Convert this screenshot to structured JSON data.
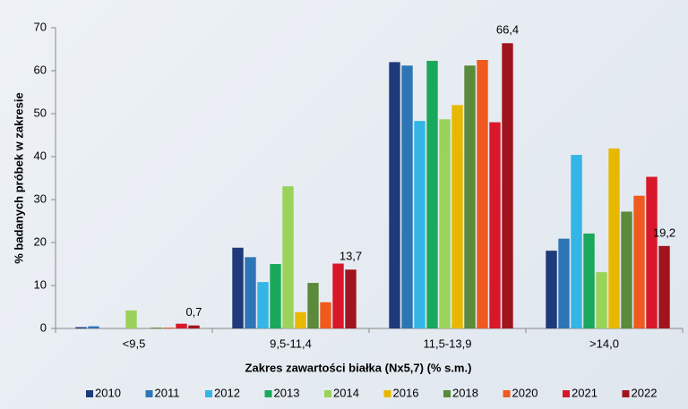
{
  "chart_data": {
    "type": "bar",
    "xlabel": "Zakres zawartości białka (Nx5,7) (% s.m.)",
    "ylabel": "% badanych próbek w zakresie",
    "categories": [
      "<9,5",
      "9,5-11,4",
      "11,5-13,9",
      ">14,0"
    ],
    "ylim": [
      0,
      70
    ],
    "yticks": [
      0,
      10,
      20,
      30,
      40,
      50,
      60,
      70
    ],
    "legend": "bottom",
    "series": [
      {
        "name": "2010",
        "color": "#1f3a7a",
        "values": [
          0.3,
          18.8,
          62.0,
          18.1
        ]
      },
      {
        "name": "2011",
        "color": "#2e75b6",
        "values": [
          0.5,
          16.6,
          61.2,
          20.9
        ]
      },
      {
        "name": "2012",
        "color": "#33b5e5",
        "values": [
          0,
          10.8,
          48.3,
          40.4
        ]
      },
      {
        "name": "2013",
        "color": "#1aa85c",
        "values": [
          0,
          15.0,
          62.3,
          22.1
        ]
      },
      {
        "name": "2014",
        "color": "#9bd25a",
        "values": [
          4.2,
          33.1,
          48.7,
          13.1
        ]
      },
      {
        "name": "2016",
        "color": "#e8b800",
        "values": [
          0,
          3.8,
          52.0,
          41.9
        ]
      },
      {
        "name": "2018",
        "color": "#5a8a3a",
        "values": [
          0.2,
          10.6,
          61.2,
          27.2
        ]
      },
      {
        "name": "2020",
        "color": "#f05a1e",
        "values": [
          0.2,
          6.1,
          62.5,
          30.9
        ]
      },
      {
        "name": "2021",
        "color": "#d8182a",
        "values": [
          1.1,
          15.1,
          48.0,
          35.3
        ]
      },
      {
        "name": "2022",
        "color": "#a0141e",
        "values": [
          0.7,
          13.7,
          66.4,
          19.2
        ],
        "value_labels": [
          "0,7",
          "13,7",
          "66,4",
          "19,2"
        ]
      }
    ]
  }
}
